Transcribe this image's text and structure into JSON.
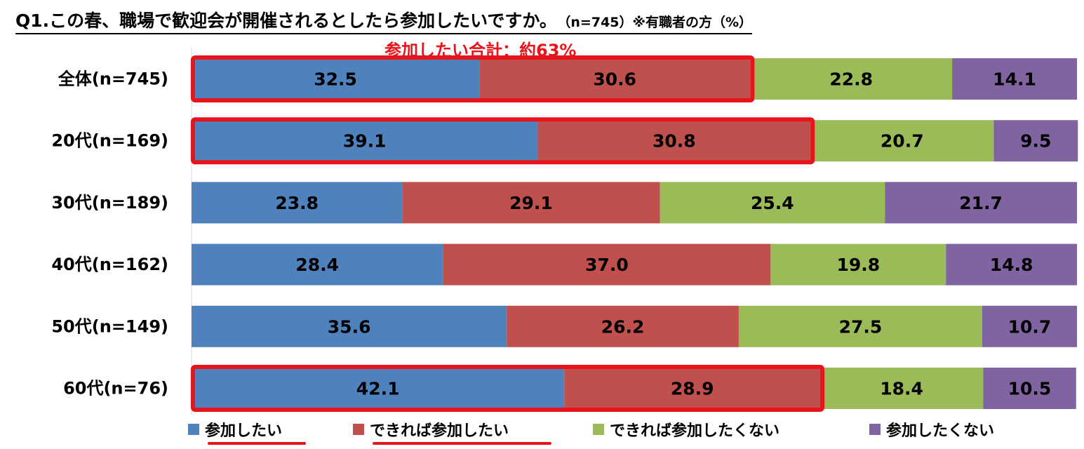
{
  "title": {
    "main": "Q1.この春、職場で歓迎会が開催されるとしたら参加したいですか。",
    "sub": "（n=745）※有職者の方（%）"
  },
  "annotation": "参加したい合計：約63%",
  "chart_data": {
    "type": "bar",
    "orientation": "horizontal",
    "stacked": true,
    "percent_scale": true,
    "categories": [
      "全体(n=745)",
      "20代(n=169)",
      "30代(n=189)",
      "40代(n=162)",
      "50代(n=149)",
      "60代(n=76)"
    ],
    "series": [
      {
        "name": "参加したい",
        "color": "#4f81bd",
        "values": [
          32.5,
          39.1,
          23.8,
          28.4,
          35.6,
          42.1
        ],
        "labels": [
          "32.5",
          "39.1",
          "23.8",
          "28.4",
          "35.6",
          "42.1"
        ]
      },
      {
        "name": "できれば参加したい",
        "color": "#c0504d",
        "values": [
          30.6,
          30.8,
          29.1,
          37.0,
          26.2,
          28.9
        ],
        "labels": [
          "30.6",
          "30.8",
          "29.1",
          "37.0",
          "26.2",
          "28.9"
        ]
      },
      {
        "name": "できれば参加したくない",
        "color": "#9bbb59",
        "values": [
          22.8,
          20.7,
          25.4,
          19.8,
          27.5,
          18.4
        ],
        "labels": [
          "22.8",
          "20.7",
          "25.4",
          "19.8",
          "27.5",
          "18.4"
        ]
      },
      {
        "name": "参加したくない",
        "color": "#8064a2",
        "values": [
          14.1,
          9.5,
          21.7,
          14.8,
          10.7,
          10.5
        ],
        "labels": [
          "14.1",
          "9.5",
          "21.7",
          "14.8",
          "10.7",
          "10.5"
        ]
      }
    ],
    "highlighted_categories": [
      "全体(n=745)",
      "20代(n=169)",
      "60代(n=76)"
    ],
    "highlighted_series": [
      "参加したい",
      "できれば参加したい"
    ],
    "highlight_color": "#e8141b",
    "legend_position": "bottom",
    "grid": false
  }
}
